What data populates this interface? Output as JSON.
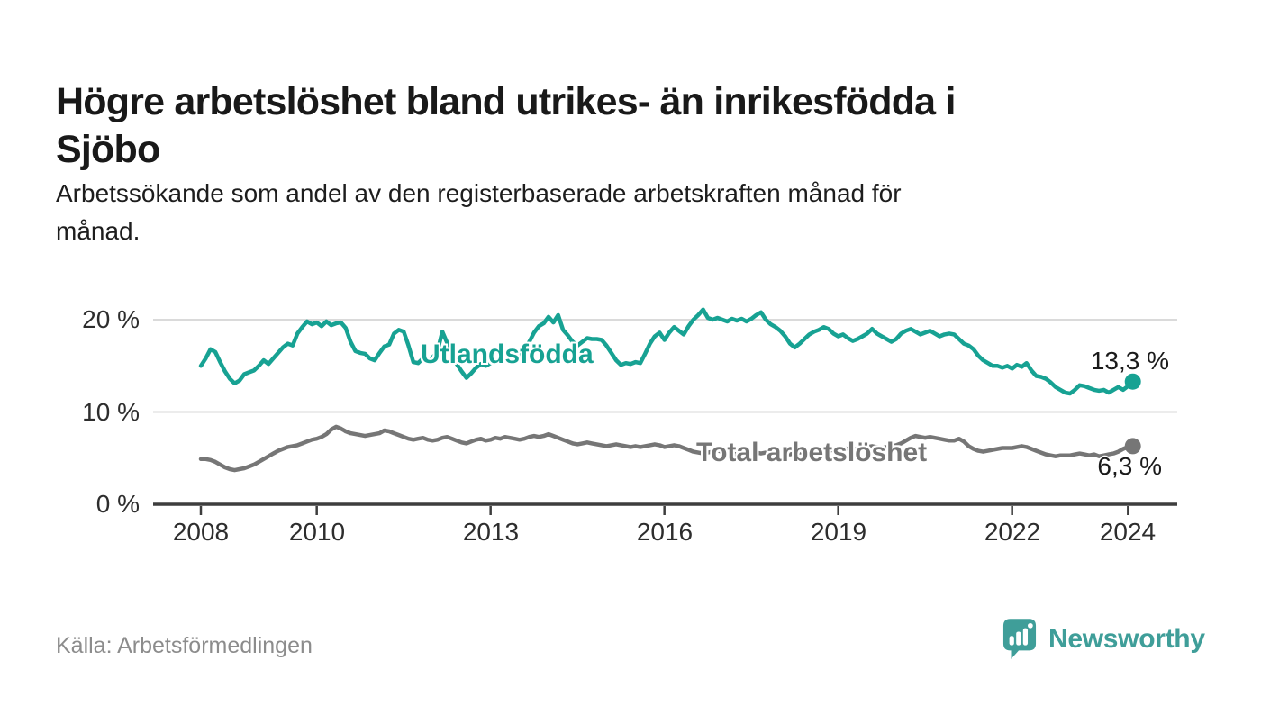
{
  "header": {
    "title_line1": "Högre arbetslöshet bland utrikes- än inrikesfödda i",
    "title_line2": "Sjöbo",
    "subtitle_line1": "Arbetssökande som andel av den registerbaserade arbetskraften månad för",
    "subtitle_line2": "månad."
  },
  "footer": {
    "source": "Källa: Arbetsförmedlingen",
    "brand_name": "Newsworthy",
    "brand_color": "#3f9e99"
  },
  "chart_data": {
    "type": "line",
    "title": "Högre arbetslöshet bland utrikes- än inrikesfödda i Sjöbo",
    "subtitle": "Arbetssökande som andel av den registerbaserade arbetskraften månad för månad.",
    "xlabel": "",
    "ylabel": "",
    "x_start_year": 2008,
    "x_months_per_point": 1,
    "x_ticks": [
      2008,
      2010,
      2013,
      2016,
      2019,
      2022,
      2024
    ],
    "x_tick_labels": [
      "2008",
      "2010",
      "2013",
      "2016",
      "2019",
      "2022",
      "2024"
    ],
    "y_ticks": [
      {
        "value": 20,
        "label": "20 %"
      },
      {
        "value": 10,
        "label": "10 %"
      },
      {
        "value": 0,
        "label": "0 %"
      }
    ],
    "ylim": [
      0,
      22.5
    ],
    "grid": "horizontal",
    "legend_position": "inline-labels",
    "axis_color": "#3d3d3d",
    "grid_color": "#dadada",
    "series": [
      {
        "name": "Utlandsfödda",
        "color": "#17a293",
        "end_label": "13,3 %",
        "end_value": 13.3,
        "values": [
          15.0,
          15.8,
          16.8,
          16.5,
          15.4,
          14.4,
          13.6,
          13.1,
          13.4,
          14.1,
          14.3,
          14.5,
          15.0,
          15.6,
          15.2,
          15.8,
          16.4,
          17.0,
          17.4,
          17.2,
          18.5,
          19.2,
          19.8,
          19.5,
          19.7,
          19.3,
          19.8,
          19.4,
          19.6,
          19.7,
          19.1,
          17.6,
          16.6,
          16.4,
          16.3,
          15.8,
          15.6,
          16.4,
          17.1,
          17.3,
          18.5,
          18.9,
          18.7,
          17.2,
          15.4,
          15.3,
          15.8,
          15.4,
          15.9,
          16.6,
          18.7,
          17.5,
          16.2,
          15.2,
          14.4,
          13.7,
          14.2,
          14.8,
          15.2,
          15.0,
          15.3,
          15.6,
          15.4,
          15.7,
          15.5,
          15.8,
          16.2,
          16.8,
          17.6,
          18.6,
          19.3,
          19.6,
          20.3,
          19.7,
          20.5,
          18.9,
          18.3,
          17.6,
          17.2,
          17.6,
          18.0,
          17.9,
          17.9,
          17.8,
          17.2,
          16.4,
          15.6,
          15.1,
          15.3,
          15.2,
          15.4,
          15.3,
          16.3,
          17.4,
          18.2,
          18.6,
          17.8,
          18.6,
          19.2,
          18.8,
          18.4,
          19.3,
          20.0,
          20.5,
          21.1,
          20.2,
          20.0,
          20.2,
          20.0,
          19.8,
          20.1,
          19.9,
          20.1,
          19.8,
          20.1,
          20.5,
          20.8,
          20.0,
          19.5,
          19.2,
          18.8,
          18.2,
          17.4,
          17.0,
          17.4,
          17.9,
          18.4,
          18.7,
          18.9,
          19.2,
          19.0,
          18.5,
          18.2,
          18.4,
          18.0,
          17.7,
          17.9,
          18.2,
          18.5,
          19.0,
          18.5,
          18.2,
          17.9,
          17.6,
          17.9,
          18.5,
          18.8,
          19.0,
          18.7,
          18.4,
          18.6,
          18.8,
          18.5,
          18.2,
          18.4,
          18.5,
          18.4,
          17.9,
          17.4,
          17.2,
          16.8,
          16.1,
          15.6,
          15.3,
          15.0,
          15.0,
          14.8,
          15.0,
          14.7,
          15.1,
          14.9,
          15.3,
          14.5,
          13.9,
          13.8,
          13.6,
          13.2,
          12.7,
          12.4,
          12.1,
          12.0,
          12.4,
          12.9,
          12.8,
          12.6,
          12.4,
          12.3,
          12.4,
          12.1,
          12.4,
          12.7,
          12.4,
          12.8,
          13.3
        ]
      },
      {
        "name": "Total arbetslöshet",
        "color": "#767676",
        "end_label": "6,3 %",
        "end_value": 6.3,
        "values": [
          4.9,
          4.9,
          4.8,
          4.6,
          4.3,
          4.0,
          3.8,
          3.7,
          3.8,
          3.9,
          4.1,
          4.3,
          4.6,
          4.9,
          5.2,
          5.5,
          5.8,
          6.0,
          6.2,
          6.3,
          6.4,
          6.6,
          6.8,
          7.0,
          7.1,
          7.3,
          7.6,
          8.1,
          8.4,
          8.2,
          7.9,
          7.7,
          7.6,
          7.5,
          7.4,
          7.5,
          7.6,
          7.7,
          8.0,
          7.9,
          7.7,
          7.5,
          7.3,
          7.1,
          7.0,
          7.1,
          7.2,
          7.0,
          6.9,
          7.0,
          7.2,
          7.3,
          7.1,
          6.9,
          6.7,
          6.6,
          6.8,
          7.0,
          7.1,
          6.9,
          7.0,
          7.2,
          7.1,
          7.3,
          7.2,
          7.1,
          7.0,
          7.1,
          7.3,
          7.4,
          7.3,
          7.4,
          7.6,
          7.4,
          7.2,
          7.0,
          6.8,
          6.6,
          6.5,
          6.6,
          6.7,
          6.6,
          6.5,
          6.4,
          6.3,
          6.4,
          6.5,
          6.4,
          6.3,
          6.2,
          6.3,
          6.2,
          6.3,
          6.4,
          6.5,
          6.4,
          6.2,
          6.3,
          6.4,
          6.3,
          6.1,
          5.9,
          5.7,
          5.6,
          5.5,
          5.6,
          5.7,
          5.8,
          5.7,
          5.6,
          5.5,
          5.4,
          5.5,
          5.5,
          5.6,
          5.6,
          5.5,
          5.6,
          5.7,
          5.7,
          5.6,
          5.5,
          5.4,
          5.5,
          5.6,
          5.7,
          5.8,
          5.9,
          6.0,
          5.9,
          5.8,
          5.9,
          6.0,
          6.1,
          6.0,
          5.9,
          6.0,
          6.1,
          6.2,
          6.3,
          6.2,
          6.1,
          6.2,
          6.3,
          6.4,
          6.6,
          6.9,
          7.2,
          7.4,
          7.3,
          7.2,
          7.3,
          7.2,
          7.1,
          7.0,
          6.9,
          6.9,
          7.1,
          6.8,
          6.3,
          6.0,
          5.8,
          5.7,
          5.8,
          5.9,
          6.0,
          6.1,
          6.1,
          6.1,
          6.2,
          6.3,
          6.2,
          6.0,
          5.8,
          5.6,
          5.4,
          5.3,
          5.2,
          5.3,
          5.3,
          5.3,
          5.4,
          5.5,
          5.4,
          5.3,
          5.4,
          5.2,
          5.3,
          5.4,
          5.5,
          5.7,
          6.0,
          6.2,
          6.3
        ]
      }
    ]
  }
}
